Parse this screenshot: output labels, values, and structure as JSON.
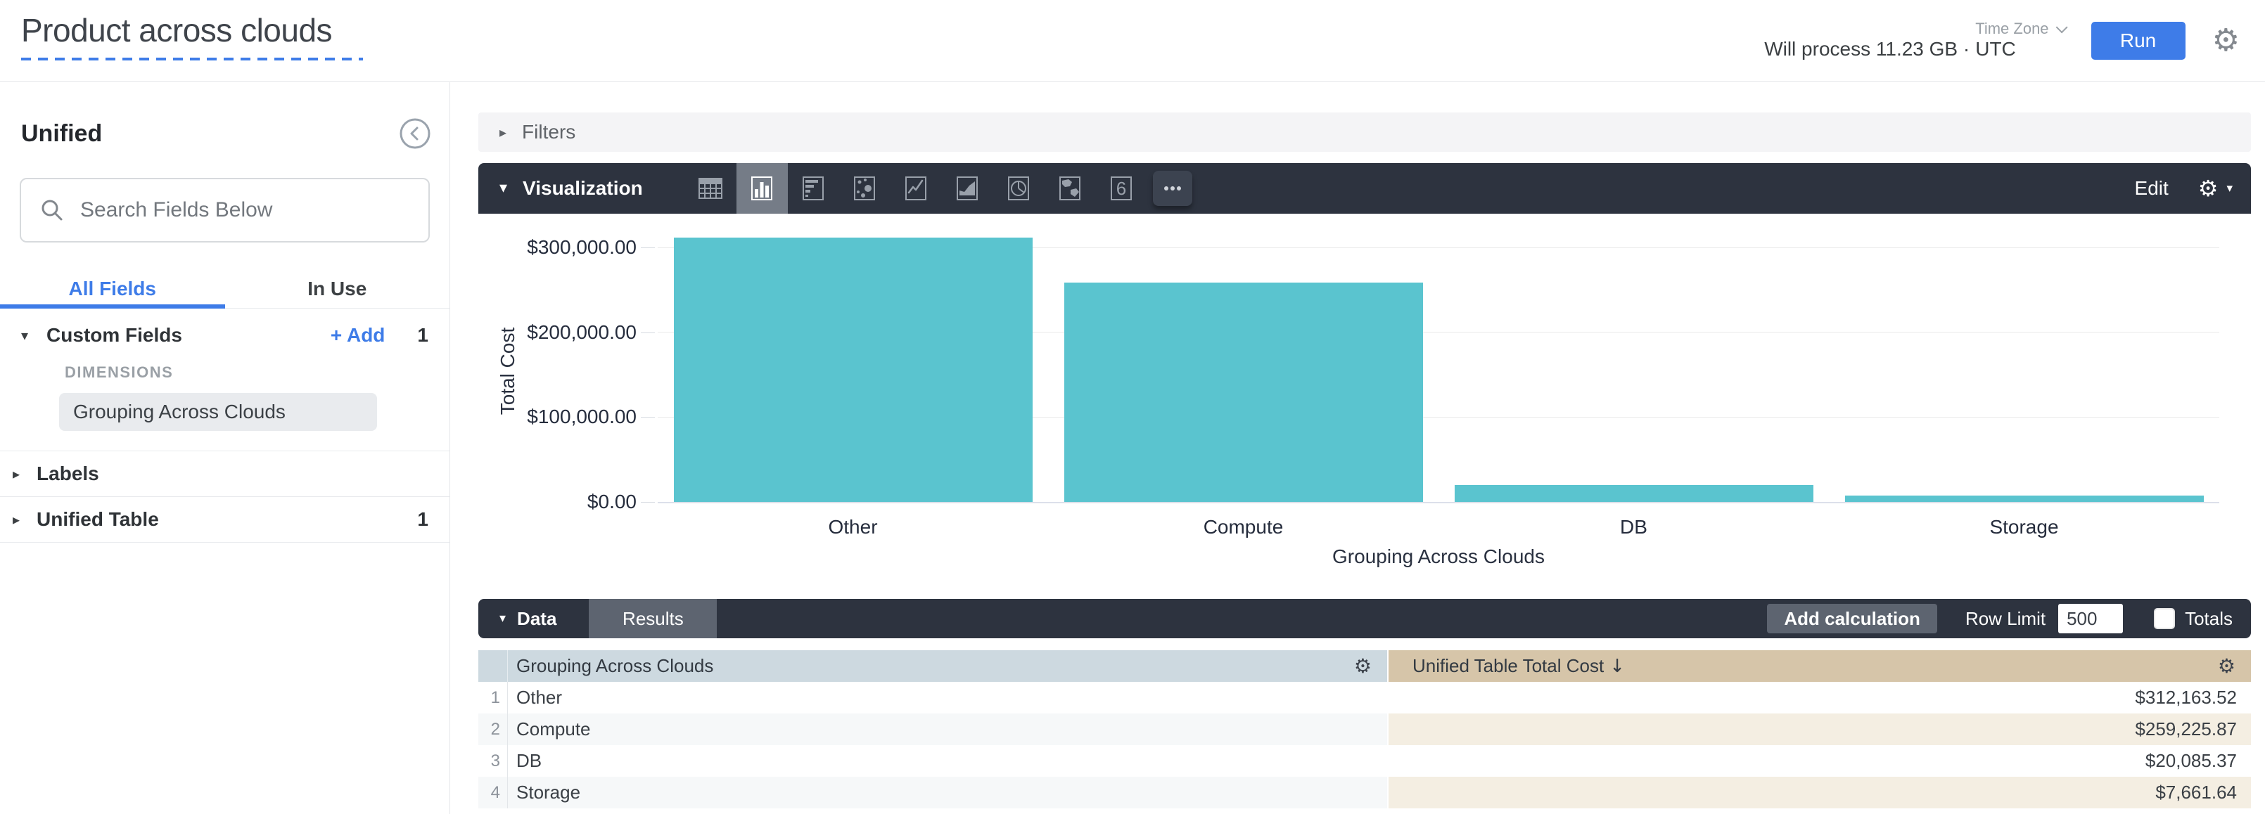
{
  "icons": {
    "gear": "⚙",
    "caret_down": "▾",
    "caret_right": "▸",
    "sort_desc": "↓"
  },
  "header": {
    "title": "Product across clouds",
    "process_label": "Will process 11.23 GB ·",
    "timezone_label": "Time Zone",
    "timezone_value": "UTC",
    "run_label": "Run"
  },
  "sidebar": {
    "view_name": "Unified",
    "search_placeholder": "Search Fields Below",
    "tabs": [
      {
        "label": "All Fields",
        "active": true
      },
      {
        "label": "In Use",
        "active": false
      }
    ],
    "custom_fields": {
      "label": "Custom Fields",
      "add_label": "+ Add",
      "count": "1",
      "group_label": "DIMENSIONS",
      "fields": [
        {
          "label": "Grouping Across Clouds",
          "selected": true
        }
      ]
    },
    "labels_section": {
      "label": "Labels"
    },
    "unified_table_section": {
      "label": "Unified Table",
      "count": "1"
    }
  },
  "filters": {
    "label": "Filters"
  },
  "viz": {
    "label": "Visualization",
    "edit_label": "Edit",
    "icons": [
      {
        "name": "table",
        "selected": false
      },
      {
        "name": "column-chart",
        "selected": true
      },
      {
        "name": "bar-chart",
        "selected": false
      },
      {
        "name": "scatter-plot",
        "selected": false
      },
      {
        "name": "line-chart",
        "selected": false
      },
      {
        "name": "area-chart",
        "selected": false
      },
      {
        "name": "pie-chart",
        "selected": false
      },
      {
        "name": "map",
        "selected": false
      },
      {
        "name": "single-value",
        "selected": false
      },
      {
        "name": "more-viz-types",
        "selected": false
      }
    ]
  },
  "chart_data": {
    "type": "bar",
    "categories": [
      "Other",
      "Compute",
      "DB",
      "Storage"
    ],
    "values": [
      312163.52,
      259225.87,
      20085.37,
      7661.64
    ],
    "series_name": "Unified Table Total Cost",
    "title": "",
    "xlabel": "Grouping Across Clouds",
    "ylabel": "Total Cost",
    "y_ticks": [
      "$0.00",
      "$100,000.00",
      "$200,000.00",
      "$300,000.00"
    ],
    "y_tick_values": [
      0,
      100000,
      200000,
      300000
    ],
    "ylim": [
      0,
      314500
    ],
    "grid": true,
    "legend": false,
    "bar_color": "#5ac4cf"
  },
  "data_panel": {
    "section_label": "Data",
    "results_tab_label": "Results",
    "add_calculation_label": "Add calculation",
    "row_limit_label": "Row Limit",
    "row_limit_value": "500",
    "totals_label": "Totals",
    "totals_checked": false,
    "table": {
      "columns": [
        {
          "label": "Grouping Across Clouds",
          "sorted": false
        },
        {
          "label": "Unified Table Total Cost",
          "sorted": "desc"
        }
      ],
      "rows": [
        {
          "index": "1",
          "dimension": "Other",
          "measure": "$312,163.52"
        },
        {
          "index": "2",
          "dimension": "Compute",
          "measure": "$259,225.87"
        },
        {
          "index": "3",
          "dimension": "DB",
          "measure": "$20,085.37"
        },
        {
          "index": "4",
          "dimension": "Storage",
          "measure": "$7,661.64"
        }
      ]
    }
  },
  "colors": {
    "accent_blue": "#3e7ce8",
    "toolbar_dark": "#2d333f",
    "bar_teal": "#5ac4cf",
    "dimension_header_bg": "#cdd9e0",
    "measure_header_bg": "#d6c5a9",
    "measure_alt_row_bg": "#f4eee2"
  }
}
